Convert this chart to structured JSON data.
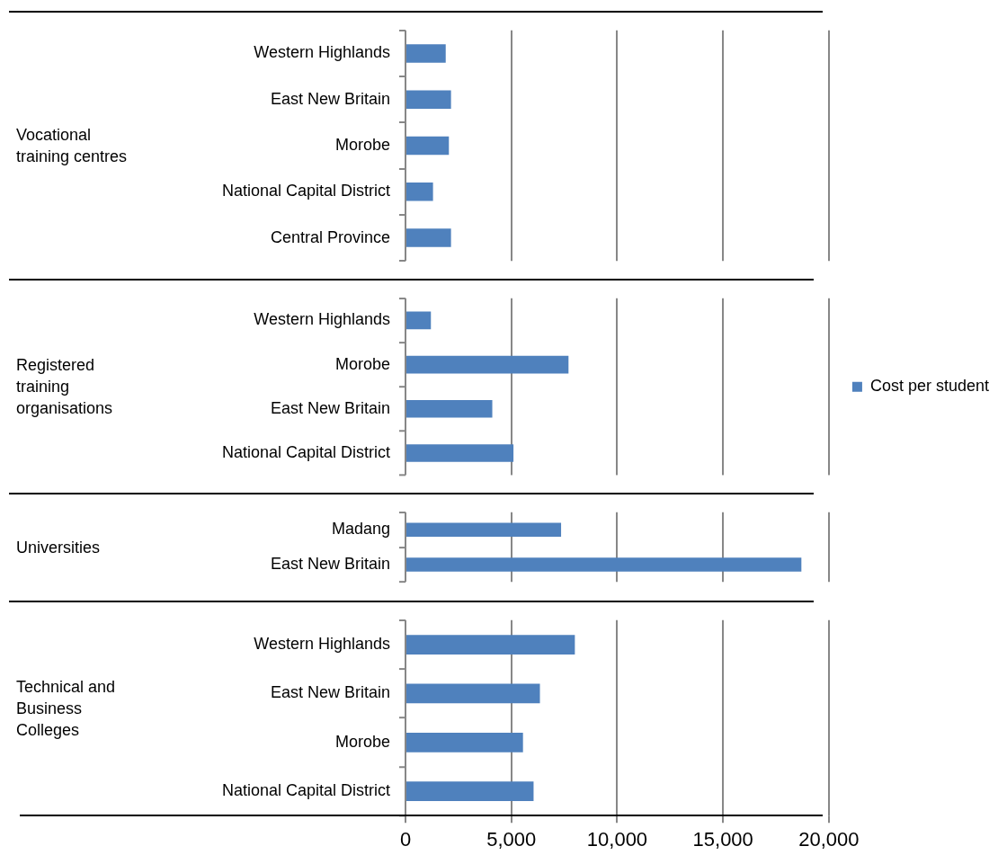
{
  "chart_data": [
    {
      "type": "bar",
      "orientation": "horizontal",
      "ylabel": "Vocational training centres",
      "categories": [
        "Western Highlands",
        "East New Britain",
        "Morobe",
        "National Capital District",
        "Central Province"
      ],
      "series": [
        {
          "color": "#4f81bd",
          "values": [
            1900,
            2150,
            2050,
            1300,
            2150
          ]
        }
      ],
      "xlim": [
        0,
        20000
      ],
      "xticks": [
        0,
        5000,
        10000,
        15000,
        20000
      ],
      "grid": "x",
      "tick_labels": "y"
    },
    {
      "type": "bar",
      "orientation": "horizontal",
      "ylabel": "Registered training organisations",
      "categories": [
        "Western Highlands",
        "Morobe",
        "East New Britain",
        "National Capital District"
      ],
      "series": [
        {
          "name": "Cost per student",
          "color": "#4f81bd",
          "values": [
            1200,
            7700,
            4100,
            5100
          ]
        }
      ],
      "xlim": [
        0,
        20000
      ],
      "xticks": [
        0,
        5000,
        10000,
        15000,
        20000
      ],
      "grid": "x",
      "tick_labels": "y",
      "legend": "right"
    },
    {
      "type": "bar",
      "orientation": "horizontal",
      "ylabel": "Universities",
      "categories": [
        "Madang",
        "East New Britain"
      ],
      "series": [
        {
          "color": "#4f81bd",
          "values": [
            7350,
            18700
          ]
        }
      ],
      "xlim": [
        0,
        20000
      ],
      "xticks": [
        0,
        5000,
        10000,
        15000,
        20000
      ],
      "grid": "x",
      "tick_labels": "y"
    },
    {
      "type": "bar",
      "orientation": "horizontal",
      "ylabel": "Technical and Business Colleges",
      "categories": [
        "Western Highlands",
        "East New Britain",
        "Morobe",
        "National Capital District"
      ],
      "series": [
        {
          "color": "#4f81bd",
          "values": [
            8000,
            6350,
            5550,
            6050
          ]
        }
      ],
      "xlim": [
        0,
        20000
      ],
      "xticks": [
        0,
        {
          "value": 5000,
          "label": "5,000"
        },
        {
          "value": 10000,
          "label": "10,000"
        },
        {
          "value": 15000,
          "label": "15,000"
        },
        {
          "value": 20000,
          "label": "20,000"
        }
      ],
      "grid": "x"
    }
  ]
}
